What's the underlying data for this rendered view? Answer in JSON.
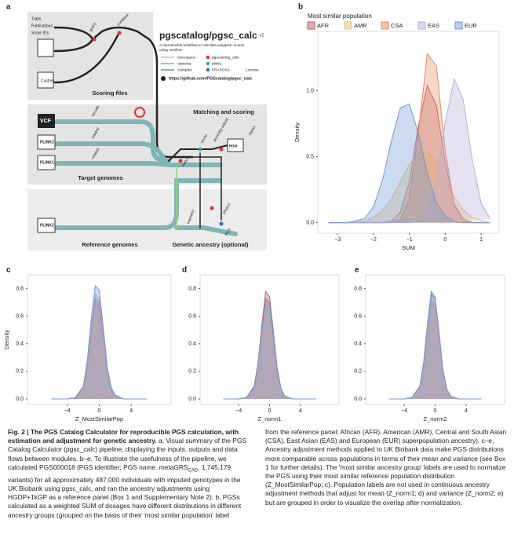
{
  "panel_a": {
    "label": "a",
    "title": "pgscatalog/pgsc_calc",
    "version": "v2",
    "description": [
      "A reproducible workflow to calculate polygenic scores",
      "using nextflow"
    ],
    "legend_lines": [
      "Genotypes",
      "Variants",
      "Samples"
    ],
    "legend_tools": [
      "pgscatalog_utils",
      "plink2",
      "FRAPOSA"
    ],
    "license": "License",
    "url": "https://github.com/PGScatalog/pgsc_calc",
    "sections": [
      "Scoring files",
      "Target genomes",
      "Reference genomes",
      "Matching and scoring",
      "Genetic ancestry (optional)"
    ],
    "inputs": [
      "Traits",
      "Publications",
      "Score IDs",
      "Custom",
      "VCF",
      "PLINK2",
      "PLINK1",
      "PLINK2"
    ],
    "steps": [
      "query",
      "combine",
      "recode",
      "relabel",
      "relabel",
      "match",
      "score",
      "ancestry adjust",
      "report",
      "html",
      "intersect",
      "project",
      "PCA"
    ]
  },
  "chart_data": [
    {
      "type": "density",
      "panel_label": "b",
      "legend_title": "Most similar population",
      "xlabel": "SUM",
      "ylabel": "Density",
      "x": [
        -3.25,
        -2.75,
        -2.25,
        -2,
        -1.75,
        -1.5,
        -1.25,
        -1,
        -0.75,
        -0.5,
        -0.25,
        0,
        0.25,
        0.5,
        0.75,
        1,
        1.25
      ],
      "series": [
        {
          "name": "AFR",
          "color": "#b5616d",
          "values": [
            0,
            0,
            0,
            0,
            0,
            0.01,
            0.08,
            0.31,
            0.73,
            1.04,
            0.89,
            0.46,
            0.14,
            0.03,
            0,
            0,
            0
          ]
        },
        {
          "name": "AMR",
          "color": "#e3c27e",
          "values": [
            0,
            0,
            0.01,
            0.04,
            0.09,
            0.18,
            0.31,
            0.44,
            0.53,
            0.54,
            0.46,
            0.33,
            0.2,
            0.1,
            0.04,
            0.02,
            0
          ]
        },
        {
          "name": "CSA",
          "color": "#e48a5c",
          "values": [
            0,
            0,
            0,
            0,
            0,
            0,
            0.02,
            0.18,
            0.68,
            1.28,
            1.19,
            0.55,
            0.13,
            0.01,
            0,
            0,
            0
          ]
        },
        {
          "name": "EAS",
          "color": "#b8addb",
          "values": [
            0,
            0,
            0,
            0,
            0,
            0,
            0,
            0,
            0.01,
            0.08,
            0.32,
            0.76,
            1.09,
            0.93,
            0.48,
            0.15,
            0.03
          ]
        },
        {
          "name": "EUR",
          "color": "#6f97d3",
          "values": [
            0,
            0,
            0.03,
            0.12,
            0.32,
            0.62,
            0.87,
            0.9,
            0.68,
            0.38,
            0.15,
            0.05,
            0.01,
            0,
            0,
            0,
            0
          ]
        }
      ],
      "xlim": [
        -3.55,
        1.5
      ],
      "ylim": [
        -0.08,
        1.45
      ],
      "xticks": [
        {
          "value": -3,
          "label": "−3"
        },
        {
          "value": -2,
          "label": "−2"
        },
        {
          "value": -1,
          "label": "−1"
        },
        0,
        1
      ],
      "yticks": [
        {
          "value": 0,
          "label": "0.0"
        },
        {
          "value": 0.5,
          "label": "0.5"
        },
        {
          "value": 1,
          "label": "1.0"
        }
      ]
    },
    {
      "type": "density",
      "panel_label": "c",
      "xlabel": "Z_MostSimilarPop",
      "ylabel": "Density",
      "x": [
        -6,
        -4,
        -3,
        -2,
        -1.5,
        -1,
        -0.5,
        0,
        0.5,
        1,
        1.5,
        2,
        3,
        4,
        6
      ],
      "series": [
        {
          "color": "#b5616d",
          "values": [
            0,
            0,
            0.01,
            0.08,
            0.25,
            0.51,
            0.73,
            0.7,
            0.46,
            0.2,
            0.07,
            0.02,
            0,
            0,
            0
          ]
        },
        {
          "color": "#e3c27e",
          "values": [
            0,
            0,
            0.01,
            0.07,
            0.22,
            0.46,
            0.66,
            0.63,
            0.41,
            0.18,
            0.06,
            0.02,
            0,
            0,
            0
          ]
        },
        {
          "color": "#e48a5c",
          "values": [
            0,
            0,
            0.01,
            0.08,
            0.24,
            0.49,
            0.7,
            0.67,
            0.44,
            0.19,
            0.06,
            0.02,
            0,
            0,
            0
          ]
        },
        {
          "color": "#b8addb",
          "values": [
            0,
            0,
            0.01,
            0.09,
            0.26,
            0.53,
            0.76,
            0.73,
            0.48,
            0.21,
            0.07,
            0.02,
            0,
            0,
            0
          ]
        },
        {
          "color": "#6f97d3",
          "values": [
            0,
            0,
            0.01,
            0.09,
            0.28,
            0.58,
            0.82,
            0.79,
            0.52,
            0.23,
            0.08,
            0.03,
            0,
            0,
            0
          ]
        }
      ],
      "xlim": [
        -9,
        9
      ],
      "ylim": [
        -0.04,
        0.9
      ],
      "xticks": [
        {
          "value": -4,
          "label": "−4"
        },
        0,
        4
      ],
      "yticks": [
        {
          "value": 0,
          "label": "0.0"
        },
        {
          "value": 0.2,
          "label": "0.2"
        },
        {
          "value": 0.4,
          "label": "0.4"
        },
        {
          "value": 0.6,
          "label": "0.6"
        },
        {
          "value": 0.8,
          "label": "0.8"
        }
      ]
    },
    {
      "type": "density",
      "panel_label": "d",
      "xlabel": "Z_norm1",
      "x": [
        -6,
        -4,
        -3,
        -2,
        -1.5,
        -1,
        -0.5,
        0,
        0.5,
        1,
        1.5,
        2,
        3,
        4,
        6
      ],
      "series": [
        {
          "color": "#b5616d",
          "values": [
            0,
            0,
            0.01,
            0.09,
            0.26,
            0.54,
            0.78,
            0.74,
            0.49,
            0.22,
            0.07,
            0.02,
            0,
            0,
            0
          ]
        },
        {
          "color": "#e3c27e",
          "values": [
            0,
            0,
            0.01,
            0.08,
            0.23,
            0.48,
            0.68,
            0.65,
            0.43,
            0.19,
            0.06,
            0.02,
            0,
            0,
            0
          ]
        },
        {
          "color": "#e48a5c",
          "values": [
            0,
            0,
            0.01,
            0.08,
            0.25,
            0.51,
            0.73,
            0.7,
            0.46,
            0.2,
            0.07,
            0.02,
            0,
            0,
            0
          ]
        },
        {
          "color": "#b8addb",
          "values": [
            0,
            0,
            0.01,
            0.08,
            0.24,
            0.49,
            0.7,
            0.67,
            0.44,
            0.19,
            0.06,
            0.02,
            0,
            0,
            0
          ]
        },
        {
          "color": "#6f97d3",
          "values": [
            0,
            0,
            0.01,
            0.08,
            0.24,
            0.5,
            0.72,
            0.69,
            0.45,
            0.2,
            0.07,
            0.02,
            0,
            0,
            0
          ]
        }
      ],
      "xlim": [
        -9,
        9
      ],
      "ylim": [
        -0.04,
        0.9
      ],
      "xticks": [
        {
          "value": -4,
          "label": "−4"
        },
        0,
        4
      ],
      "yticks": [
        {
          "value": 0,
          "label": "0.0"
        },
        {
          "value": 0.2,
          "label": "0.2"
        },
        {
          "value": 0.4,
          "label": "0.4"
        },
        {
          "value": 0.6,
          "label": "0.6"
        },
        {
          "value": 0.8,
          "label": "0.8"
        }
      ]
    },
    {
      "type": "density",
      "panel_label": "e",
      "xlabel": "Z_norm2",
      "x": [
        -6,
        -4,
        -3,
        -2,
        -1.5,
        -1,
        -0.5,
        0,
        0.5,
        1,
        1.5,
        2,
        3,
        4,
        6
      ],
      "series": [
        {
          "color": "#b5616d",
          "values": [
            0,
            0,
            0.01,
            0.09,
            0.26,
            0.53,
            0.76,
            0.73,
            0.48,
            0.21,
            0.07,
            0.02,
            0,
            0,
            0
          ]
        },
        {
          "color": "#e3c27e",
          "values": [
            0,
            0,
            0.01,
            0.07,
            0.22,
            0.46,
            0.66,
            0.63,
            0.41,
            0.18,
            0.06,
            0.02,
            0,
            0,
            0
          ]
        },
        {
          "color": "#e48a5c",
          "values": [
            0,
            0,
            0.01,
            0.08,
            0.24,
            0.49,
            0.7,
            0.67,
            0.44,
            0.19,
            0.06,
            0.02,
            0,
            0,
            0
          ]
        },
        {
          "color": "#b8addb",
          "values": [
            0,
            0,
            0.01,
            0.08,
            0.24,
            0.5,
            0.72,
            0.69,
            0.45,
            0.2,
            0.07,
            0.02,
            0,
            0,
            0
          ]
        },
        {
          "color": "#6f97d3",
          "values": [
            0,
            0,
            0.01,
            0.09,
            0.26,
            0.54,
            0.78,
            0.74,
            0.49,
            0.22,
            0.07,
            0.02,
            0,
            0,
            0
          ]
        }
      ],
      "xlim": [
        -9,
        9
      ],
      "ylim": [
        -0.04,
        0.9
      ],
      "xticks": [
        {
          "value": -4,
          "label": "−4"
        },
        0,
        4
      ],
      "yticks": [
        {
          "value": 0,
          "label": "0.0"
        },
        {
          "value": 0.2,
          "label": "0.2"
        },
        {
          "value": 0.4,
          "label": "0.4"
        },
        {
          "value": 0.6,
          "label": "0.6"
        },
        {
          "value": 0.8,
          "label": "0.8"
        }
      ]
    }
  ],
  "caption": {
    "title": "Fig. 2 | The PGS Catalog Calculator for reproducible PGS calculation, with estimation and adjustment for genetic ancestry.",
    "left": [
      " a, Visual summary of the PGS Catalog Calculator (pgsc_calc) pipeline, displaying the inputs, outputs and data flows between modules. b–e, To illustrate the usefulness of the pipeline, we calculated PGS000018 (PGS identifier; PGS name. metaGRS",
      "CAD",
      ", 1,745,179 variants) for all approximately 487,000 individuals with imputed genotypes in the UK Biobank using pgsc_calc, and ran the ancestry adjustments using HGDP+1kGP as a reference panel (Box 1 and Supplementary Note 2). b, PGSs calculated as a weighted SUM of dosages have different distributions in different ancestry groups (grouped on the basis of their 'most similar population' label"
    ],
    "right": "from the reference panel: African (AFR), American (AMR), Central and South Asian (CSA), East Asian (EAS) and European (EUR) superpopulation ancestry). c–e, Ancestry adjustment methods applied to UK Biobank data make PGS distributions more comparable across populations in terms of their mean and variance (see Box 1 for further details). The 'most similar ancestry group' labels are used to normalize the PGS using their most similar reference population distribution (Z_MostSimilarPop; c). Population labels are not used in continuous ancestry adjustment methods that adjust for mean (Z_norm1; d) and variance (Z_norm2; e) but are grouped in order to visualize the overlap after normalization."
  }
}
